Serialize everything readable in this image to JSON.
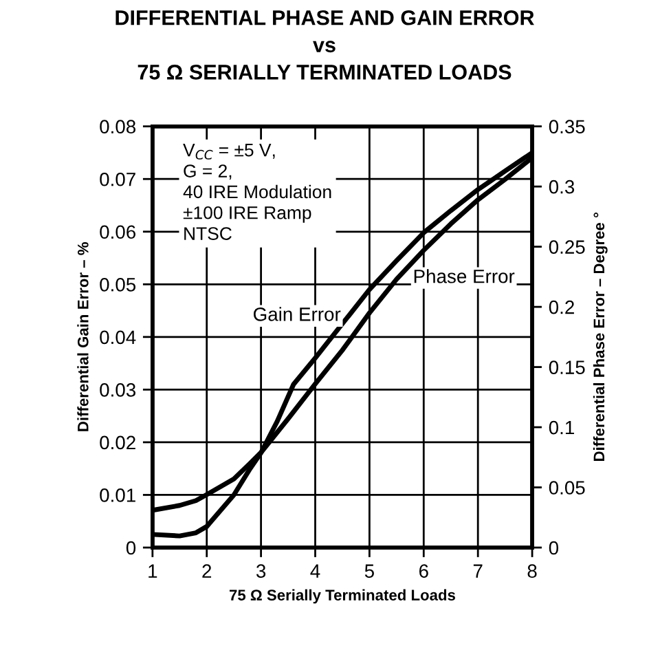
{
  "chart_data": {
    "type": "line",
    "title": "DIFFERENTIAL PHASE AND GAIN ERROR\nvs\n75 Ω SERIALLY TERMINATED LOADS",
    "xlabel": "75 Ω Serially Terminated Loads",
    "ylabel": "Differential Gain Error – %",
    "y2label": "Differential Phase Error – Degree °",
    "annotations": [
      "V$_{CC}$ = ±5 V,\nG = 2,\n40 IRE Modulation\n±100 IRE Ramp\nNTSC"
    ],
    "series": [
      {
        "name": "Gain Error",
        "color": "#000000",
        "x": [
          1,
          1.5,
          1.8,
          2,
          2.5,
          2.8,
          3,
          3.3,
          3.6,
          4,
          4.5,
          5,
          5.5,
          6,
          6.5,
          7,
          7.5,
          8
        ],
        "values": [
          0.0025,
          0.0022,
          0.0028,
          0.004,
          0.01,
          0.015,
          0.018,
          0.024,
          0.031,
          0.036,
          0.0425,
          0.049,
          0.0545,
          0.0598,
          0.064,
          0.068,
          0.0715,
          0.075
        ]
      },
      {
        "name": "Phase Error",
        "color": "#000000",
        "axis": "y2",
        "x": [
          1,
          1.5,
          1.8,
          2,
          2.5,
          2.8,
          3,
          3.5,
          4,
          4.5,
          5,
          5.5,
          6,
          6.5,
          7,
          7.5,
          8
        ],
        "values": [
          0.031,
          0.035,
          0.039,
          0.044,
          0.057,
          0.07,
          0.079,
          0.107,
          0.136,
          0.164,
          0.195,
          0.223,
          0.247,
          0.269,
          0.289,
          0.306,
          0.324
        ]
      }
    ],
    "xlim": [
      1,
      8
    ],
    "xticks": [
      1,
      2,
      3,
      4,
      5,
      6,
      7,
      8
    ],
    "ylim": [
      0,
      0.08
    ],
    "yticks": [
      0,
      0.01,
      0.02,
      0.03,
      0.04,
      0.05,
      0.06,
      0.07,
      0.08
    ],
    "y2lim": [
      0,
      0.35
    ],
    "y2ticks": [
      0,
      0.05,
      0.1,
      0.15,
      0.2,
      0.25,
      0.3,
      0.35
    ],
    "grid": true,
    "legend": false,
    "marker": "none",
    "line_style": "solid"
  }
}
